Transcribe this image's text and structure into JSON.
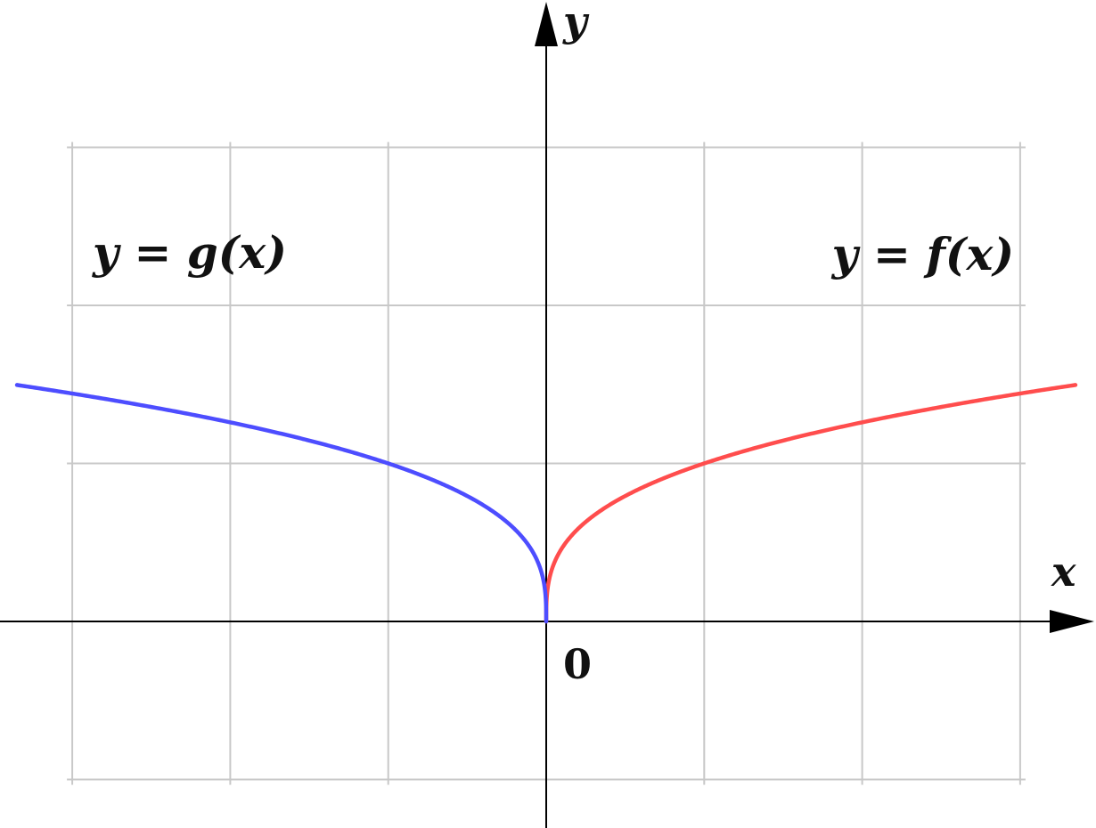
{
  "chart_data": {
    "type": "line",
    "title": "",
    "xlabel": "x",
    "ylabel": "y",
    "origin_label": "0",
    "xlim": [
      -3.45,
      3.45
    ],
    "ylim": [
      -1.3,
      3.9
    ],
    "grid": true,
    "grid_x": [
      -3,
      -2,
      -1,
      0,
      1,
      2,
      3
    ],
    "grid_y": [
      -1,
      0,
      1,
      2,
      3
    ],
    "series": [
      {
        "name": "y = f(x)",
        "color": "#ff4d4d",
        "domain": [
          0,
          3.35
        ],
        "x": [
          0,
          0.01,
          0.05,
          0.1,
          0.25,
          0.5,
          1,
          1.5,
          2,
          2.5,
          3,
          3.35
        ],
        "y": [
          0,
          0.215,
          0.368,
          0.464,
          0.63,
          0.794,
          1.0,
          1.145,
          1.26,
          1.357,
          1.442,
          1.496
        ]
      },
      {
        "name": "y = g(x)",
        "color": "#4d4dff",
        "domain": [
          -3.35,
          0
        ],
        "x": [
          -3.35,
          -3,
          -2.5,
          -2,
          -1.5,
          -1,
          -0.5,
          -0.25,
          -0.1,
          -0.05,
          -0.01,
          0
        ],
        "y": [
          1.496,
          1.442,
          1.357,
          1.26,
          1.145,
          1.0,
          0.794,
          0.63,
          0.464,
          0.368,
          0.215,
          0
        ]
      }
    ]
  }
}
